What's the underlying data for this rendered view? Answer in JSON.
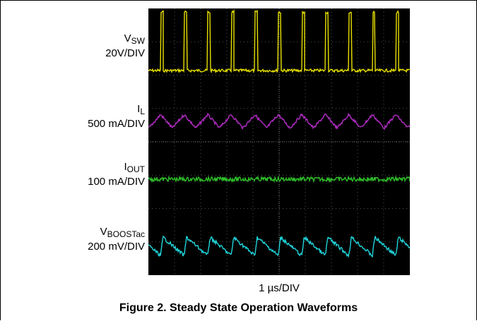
{
  "chart_data": {
    "type": "line",
    "title": "Figure 2. Steady State Operation Waveforms",
    "xlabel": "1 µs/DIV",
    "divisions": {
      "x": 10,
      "y": 8
    },
    "grid": true,
    "series": [
      {
        "name_main": "V",
        "name_sub": "SW",
        "scale": "20V/DIV",
        "color": "#e8e000",
        "shape": "pulse",
        "period_div": 0.9,
        "duty": 0.12,
        "amplitude_div": 1.75
      },
      {
        "name_main": "I",
        "name_sub": "L",
        "scale": "500 mA/DIV",
        "color": "#b22cc4",
        "shape": "triangle",
        "period_div": 0.9,
        "amplitude_div": 0.45
      },
      {
        "name_main": "I",
        "name_sub": "OUT",
        "scale": "100 mA/DIV",
        "color": "#2fc02a",
        "shape": "flat",
        "period_div": 0.9,
        "amplitude_div": 0.06
      },
      {
        "name_main": "V",
        "name_sub": "BOOSTac",
        "scale": "200 mV/DIV",
        "color": "#1fd6dc",
        "shape": "sawtooth",
        "period_div": 0.9,
        "amplitude_div": 0.55
      }
    ]
  },
  "labels": {
    "vsw_main": "V",
    "vsw_sub": "SW",
    "vsw_scale": "20V/DIV",
    "il_main": "I",
    "il_sub": "L",
    "il_scale": "500 mA/DIV",
    "iout_main": "I",
    "iout_sub": "OUT",
    "iout_scale": "100 mA/DIV",
    "vboost_main": "V",
    "vboost_sub": "BOOSTac",
    "vboost_scale": "200 mV/DIV"
  },
  "xlabel_text": "1 µs/DIV",
  "caption": "Figure 2. Steady State Operation Waveforms"
}
